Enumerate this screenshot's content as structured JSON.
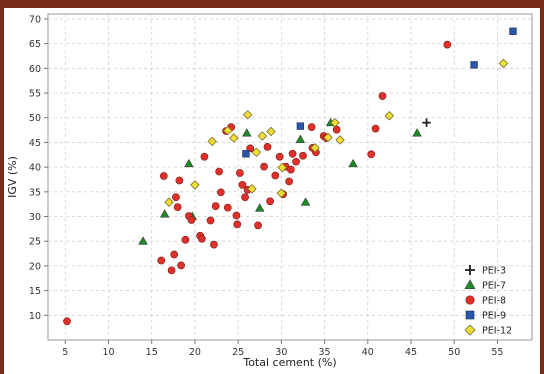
{
  "chart_data": {
    "type": "scatter",
    "xlabel": "Total cement (%)",
    "ylabel": "IGV (%)",
    "xlim": [
      3,
      59
    ],
    "ylim": [
      5,
      71
    ],
    "xticks": [
      5,
      10,
      15,
      20,
      25,
      30,
      35,
      40,
      45,
      50,
      55
    ],
    "yticks": [
      10,
      15,
      20,
      25,
      30,
      35,
      40,
      45,
      50,
      55,
      60,
      65,
      70
    ],
    "grid": true,
    "legend_position": "bottom-right",
    "series": [
      {
        "name": "PEI-3",
        "marker": "plus",
        "color": "#222222",
        "points": [
          [
            46.8,
            49
          ]
        ]
      },
      {
        "name": "PEI-7",
        "marker": "triangle",
        "color": "#1f8a2a",
        "points": [
          [
            14.0,
            25.0
          ],
          [
            16.5,
            30.5
          ],
          [
            19.3,
            40.7
          ],
          [
            19.7,
            30.0
          ],
          [
            26.0,
            46.9
          ],
          [
            27.5,
            31.7
          ],
          [
            32.2,
            45.6
          ],
          [
            32.8,
            32.9
          ],
          [
            35.7,
            49.0
          ],
          [
            38.3,
            40.7
          ],
          [
            45.7,
            46.9
          ]
        ]
      },
      {
        "name": "PEI-8",
        "marker": "circle",
        "color": "#e0302a",
        "points": [
          [
            5.2,
            8.8
          ],
          [
            16.1,
            21.1
          ],
          [
            16.4,
            38.2
          ],
          [
            17.3,
            19.1
          ],
          [
            17.6,
            22.3
          ],
          [
            17.8,
            33.9
          ],
          [
            18.0,
            31.9
          ],
          [
            18.2,
            37.3
          ],
          [
            18.4,
            20.1
          ],
          [
            18.9,
            25.3
          ],
          [
            19.3,
            30.1
          ],
          [
            19.6,
            29.3
          ],
          [
            20.6,
            26.1
          ],
          [
            20.8,
            25.5
          ],
          [
            21.1,
            42.1
          ],
          [
            21.8,
            29.2
          ],
          [
            22.2,
            24.3
          ],
          [
            22.4,
            32.1
          ],
          [
            22.8,
            39.1
          ],
          [
            23.0,
            34.9
          ],
          [
            23.6,
            47.3
          ],
          [
            23.8,
            31.8
          ],
          [
            24.2,
            48.1
          ],
          [
            24.8,
            30.2
          ],
          [
            24.9,
            28.4
          ],
          [
            25.2,
            38.8
          ],
          [
            25.5,
            36.4
          ],
          [
            25.8,
            33.9
          ],
          [
            26.1,
            35.4
          ],
          [
            26.4,
            43.8
          ],
          [
            27.3,
            28.2
          ],
          [
            28.0,
            40.1
          ],
          [
            28.4,
            44.1
          ],
          [
            28.7,
            33.1
          ],
          [
            29.3,
            38.3
          ],
          [
            29.8,
            42.1
          ],
          [
            30.2,
            34.5
          ],
          [
            30.5,
            40.1
          ],
          [
            30.9,
            37.1
          ],
          [
            31.1,
            39.5
          ],
          [
            31.3,
            42.7
          ],
          [
            31.7,
            41.1
          ],
          [
            32.5,
            42.3
          ],
          [
            33.5,
            48.1
          ],
          [
            33.6,
            43.9
          ],
          [
            34.0,
            43.0
          ],
          [
            34.9,
            46.3
          ],
          [
            35.2,
            45.9
          ],
          [
            36.4,
            47.6
          ],
          [
            40.4,
            42.6
          ],
          [
            40.9,
            47.8
          ],
          [
            41.7,
            54.4
          ],
          [
            49.2,
            64.8
          ]
        ]
      },
      {
        "name": "PEI-9",
        "marker": "square",
        "color": "#2b57a8",
        "points": [
          [
            25.9,
            42.7
          ],
          [
            32.2,
            48.3
          ],
          [
            52.3,
            60.7
          ],
          [
            56.8,
            67.5
          ]
        ]
      },
      {
        "name": "PEI-12",
        "marker": "diamond",
        "color": "#f2dd36",
        "points": [
          [
            17.0,
            32.9
          ],
          [
            20.0,
            36.4
          ],
          [
            22.0,
            45.2
          ],
          [
            23.8,
            47.4
          ],
          [
            24.5,
            45.9
          ],
          [
            26.1,
            50.6
          ],
          [
            26.6,
            35.6
          ],
          [
            27.1,
            43.0
          ],
          [
            27.8,
            46.3
          ],
          [
            28.8,
            47.2
          ],
          [
            30.0,
            34.7
          ],
          [
            30.1,
            39.9
          ],
          [
            33.9,
            43.9
          ],
          [
            35.4,
            46.0
          ],
          [
            36.2,
            49.0
          ],
          [
            36.8,
            45.5
          ],
          [
            42.5,
            50.4
          ],
          [
            55.7,
            61.0
          ]
        ]
      }
    ]
  }
}
